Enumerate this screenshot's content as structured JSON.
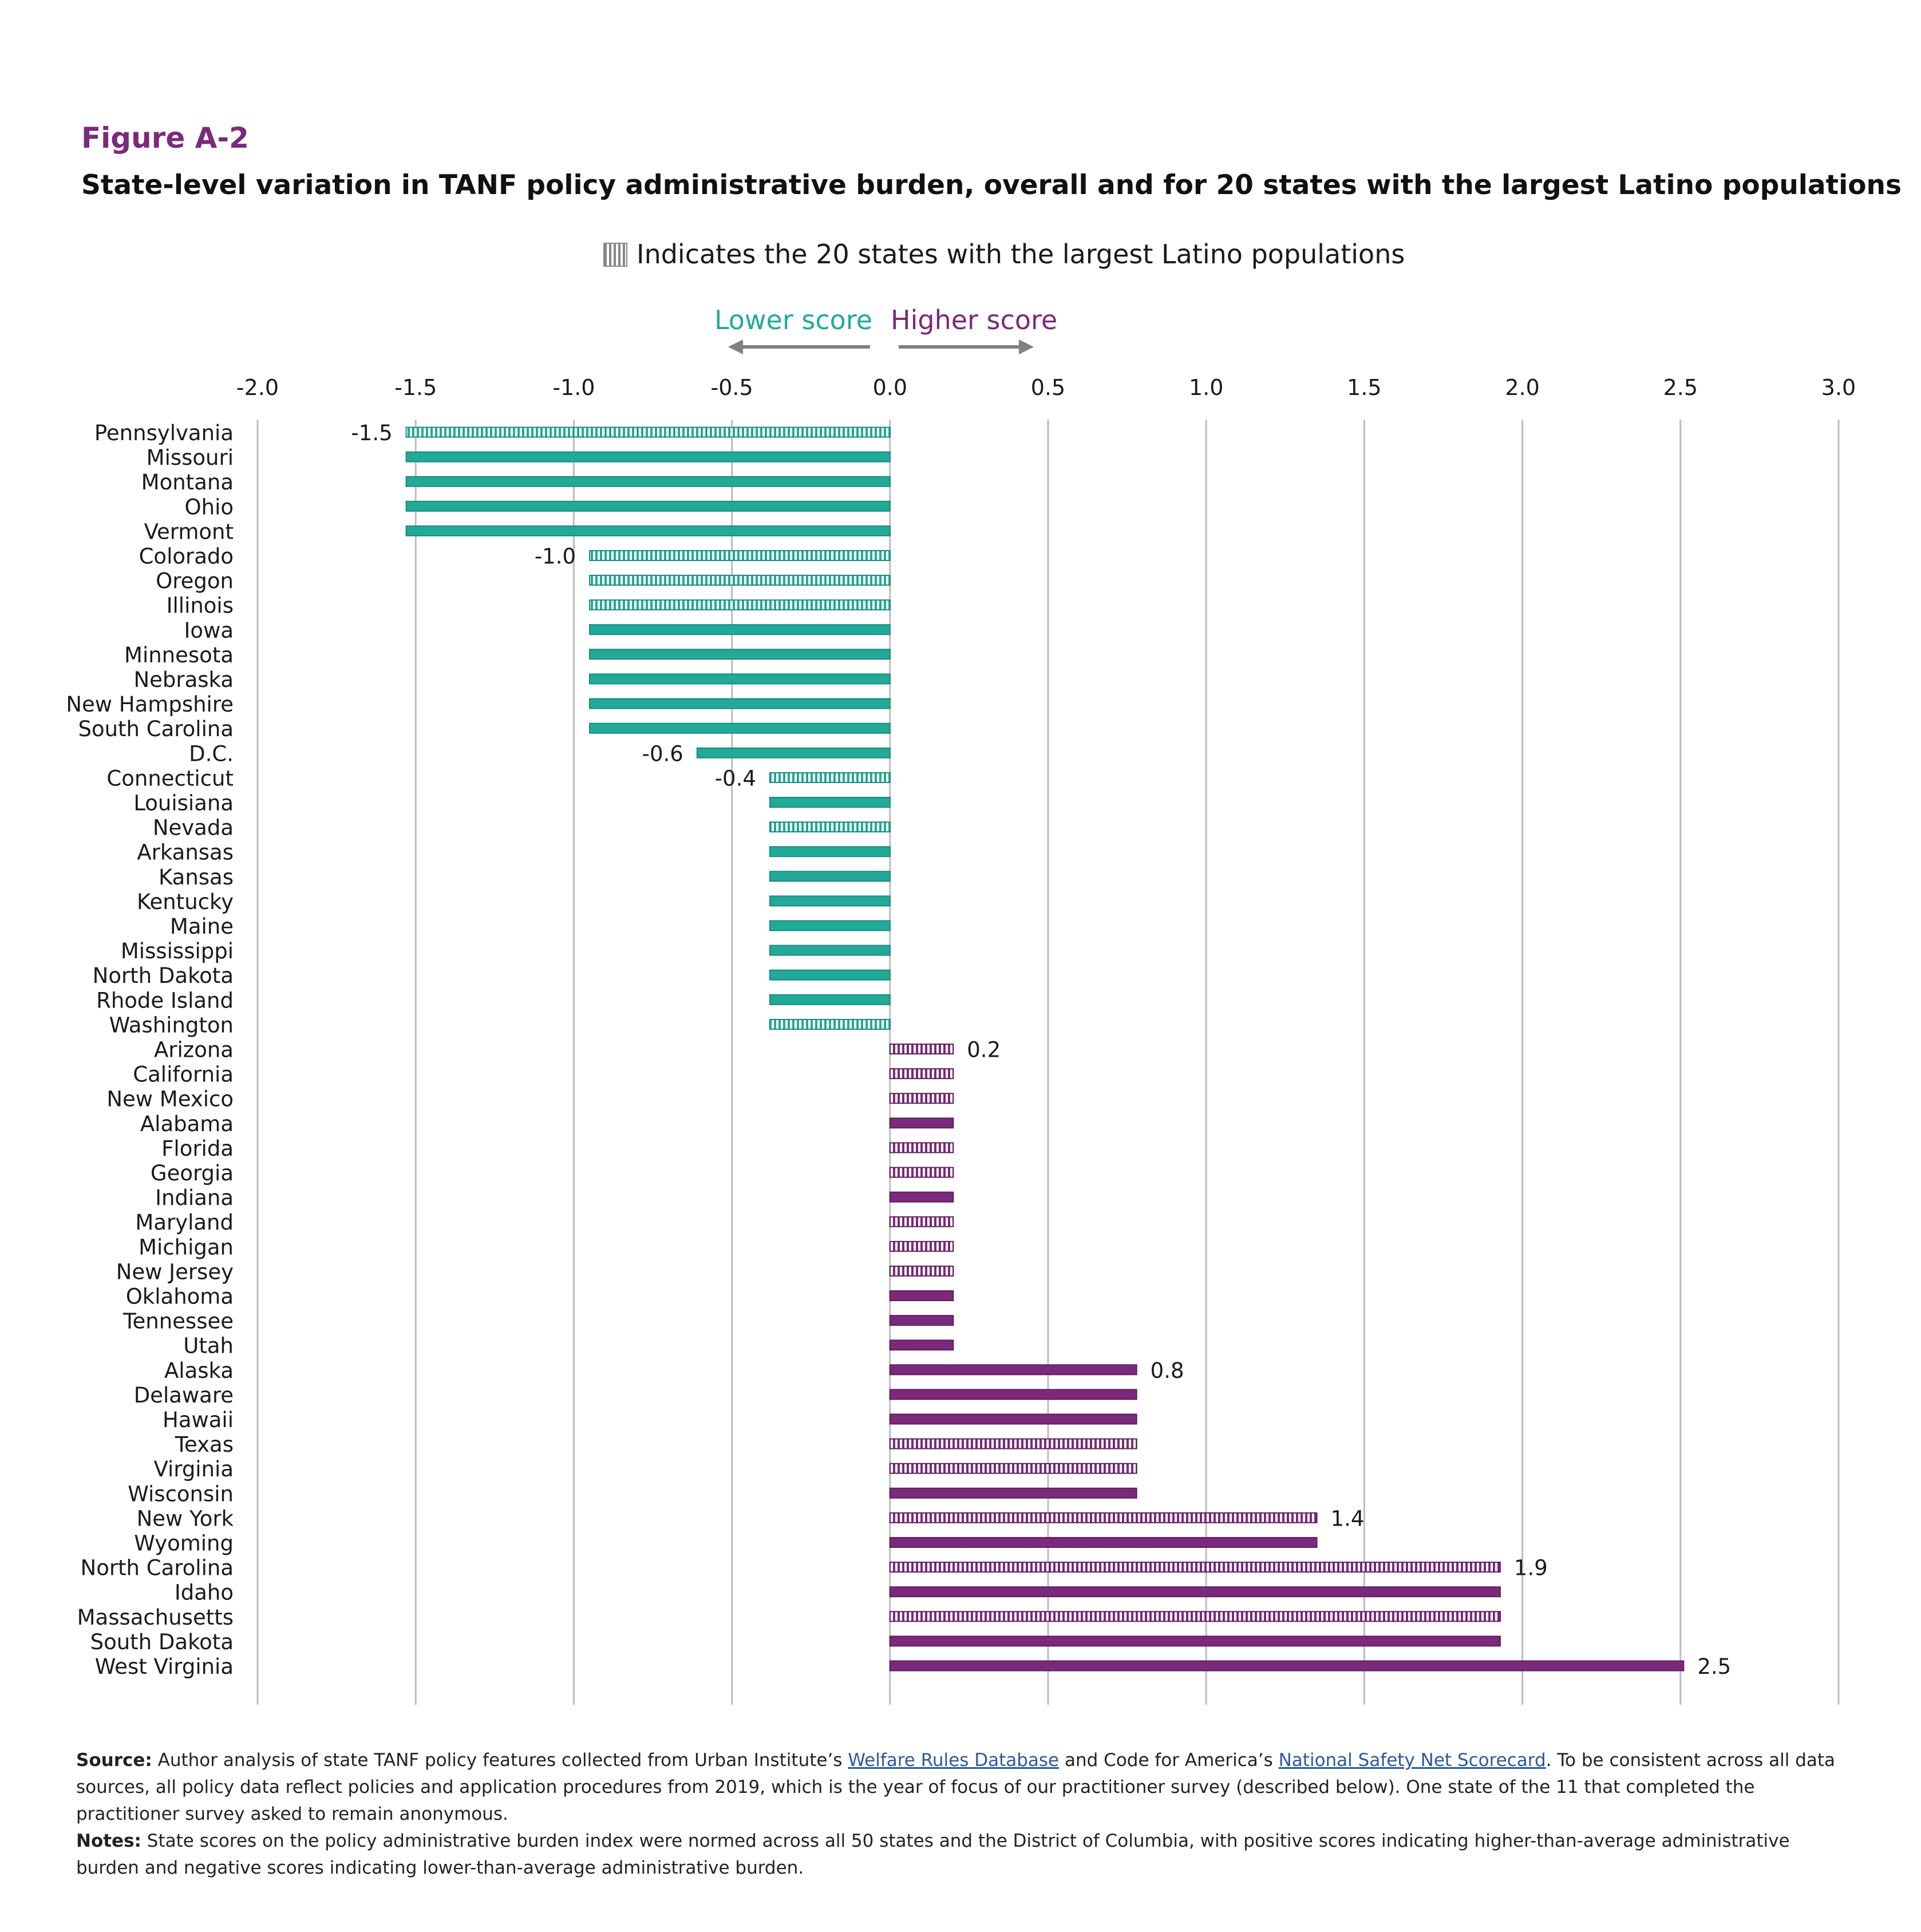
{
  "figure": {
    "label": "Figure A-2",
    "title": "State-level variation in TANF policy administrative burden, overall and for 20 states with the largest Latino populations"
  },
  "colors": {
    "lower": "#22aa99",
    "lower_dark": "#1a8a7c",
    "higher": "#7b2a7b",
    "higher_dark": "#5e1f5e",
    "gridline": "#bdbdbd",
    "arrow": "#808080",
    "legend_swatch": "#888888"
  },
  "chart_data": {
    "type": "bar",
    "orientation": "horizontal",
    "legend": "Indicates the 20 states with the largest Latino populations",
    "direction_labels": {
      "lower": "Lower score",
      "higher": "Higher score"
    },
    "xlim": [
      -2.0,
      3.0
    ],
    "ticks": [
      "-2.0",
      "-1.5",
      "-1.0",
      "-0.5",
      "0.0",
      "0.5",
      "1.0",
      "1.5",
      "2.0",
      "2.5",
      "3.0"
    ],
    "grid": true,
    "categories": [
      "Pennsylvania",
      "Missouri",
      "Montana",
      "Ohio",
      "Vermont",
      "Colorado",
      "Oregon",
      "Illinois",
      "Iowa",
      "Minnesota",
      "Nebraska",
      "New Hampshire",
      "South Carolina",
      "D.C.",
      "Connecticut",
      "Louisiana",
      "Nevada",
      "Arkansas",
      "Kansas",
      "Kentucky",
      "Maine",
      "Mississippi",
      "North Dakota",
      "Rhode Island",
      "Washington",
      "Arizona",
      "California",
      "New Mexico",
      "Alabama",
      "Florida",
      "Georgia",
      "Indiana",
      "Maryland",
      "Michigan",
      "New Jersey",
      "Oklahoma",
      "Tennessee",
      "Utah",
      "Alaska",
      "Delaware",
      "Hawaii",
      "Texas",
      "Virginia",
      "Wisconsin",
      "New York",
      "Wyoming",
      "North Carolina",
      "Idaho",
      "Massachusetts",
      "South Dakota",
      "West Virginia"
    ],
    "values": [
      -1.53,
      -1.53,
      -1.53,
      -1.53,
      -1.53,
      -0.95,
      -0.95,
      -0.95,
      -0.95,
      -0.95,
      -0.95,
      -0.95,
      -0.95,
      -0.61,
      -0.38,
      -0.38,
      -0.38,
      -0.38,
      -0.38,
      -0.38,
      -0.38,
      -0.38,
      -0.38,
      -0.38,
      -0.38,
      0.2,
      0.2,
      0.2,
      0.2,
      0.2,
      0.2,
      0.2,
      0.2,
      0.2,
      0.2,
      0.2,
      0.2,
      0.2,
      0.78,
      0.78,
      0.78,
      0.78,
      0.78,
      0.78,
      1.35,
      1.35,
      1.93,
      1.93,
      1.93,
      1.93,
      2.51
    ],
    "latino_top20": [
      true,
      false,
      false,
      false,
      false,
      true,
      true,
      true,
      false,
      false,
      false,
      false,
      false,
      false,
      true,
      false,
      true,
      false,
      false,
      false,
      false,
      false,
      false,
      false,
      true,
      true,
      true,
      true,
      false,
      true,
      true,
      false,
      true,
      true,
      true,
      false,
      false,
      false,
      false,
      false,
      false,
      true,
      true,
      false,
      true,
      false,
      true,
      false,
      true,
      false,
      false
    ],
    "data_labels": [
      {
        "index": 0,
        "text": "-1.5"
      },
      {
        "index": 5,
        "text": "-1.0"
      },
      {
        "index": 13,
        "text": "-0.6"
      },
      {
        "index": 14,
        "text": "-0.4"
      },
      {
        "index": 25,
        "text": "0.2"
      },
      {
        "index": 38,
        "text": "0.8"
      },
      {
        "index": 44,
        "text": "1.4"
      },
      {
        "index": 46,
        "text": "1.9"
      },
      {
        "index": 50,
        "text": "2.5"
      }
    ]
  },
  "notes": {
    "source_label": "Source:",
    "source_text_1": " Author analysis of state TANF policy features collected from Urban Institute’s ",
    "source_link_1": "Welfare Rules Database",
    "source_text_2": " and Code for America’s ",
    "source_link_2": "National Safety Net Scorecard",
    "source_text_3": ". To be consistent across all data sources, all policy data reflect policies and application procedures from 2019, which is the year of focus of our practitioner survey (described below). One state of the 11 that completed the practitioner survey asked to remain anonymous.",
    "notes_label": "Notes:",
    "notes_text": " State scores on the policy administrative burden index were normed across all 50 states and the District of Columbia, with positive scores indicating higher-than-average administrative burden and negative scores indicating lower-than-average administrative burden."
  }
}
